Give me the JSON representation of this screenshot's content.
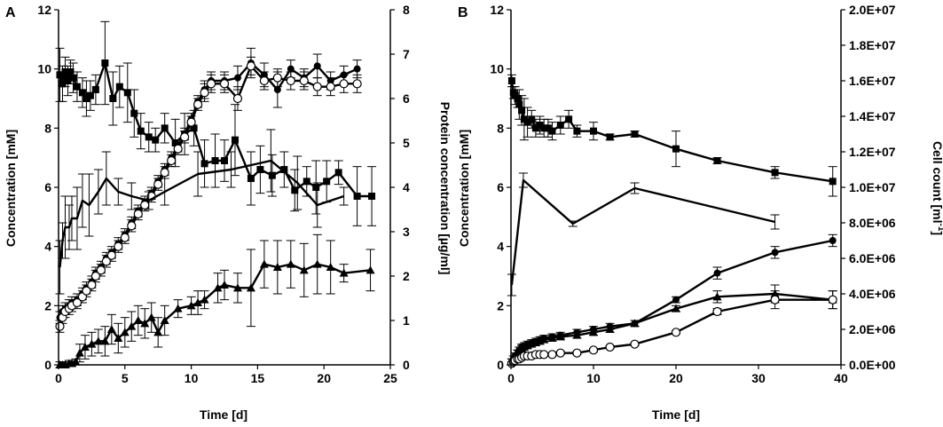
{
  "chart_data": [
    {
      "panel": "A",
      "type": "line",
      "xlabel": "Time [d]",
      "ylabel": "Concentration [mM]",
      "y2label": "Protein concentration [µg/ml]",
      "xlim": [
        0,
        25
      ],
      "ylim": [
        0,
        12
      ],
      "y2lim": [
        0,
        8
      ],
      "xticks": [
        "0",
        "5",
        "10",
        "15",
        "20",
        "25"
      ],
      "yticks": [
        "0",
        "2",
        "4",
        "6",
        "8",
        "10",
        "12"
      ],
      "y2ticks": [
        "0",
        "1",
        "2",
        "3",
        "4",
        "5",
        "6",
        "7",
        "8"
      ],
      "series": [
        {
          "name": "squares",
          "marker": "square",
          "axis": "left",
          "x": [
            0.1,
            0.3,
            0.5,
            0.7,
            0.9,
            1.1,
            1.4,
            1.8,
            2.1,
            2.4,
            2.8,
            3.5,
            4.1,
            4.6,
            5.2,
            5.7,
            6.2,
            6.8,
            7.3,
            8.0,
            8.8,
            9.5,
            10.2,
            11.0,
            11.8,
            12.5,
            13.3,
            14.5,
            15.2,
            16.1,
            17.0,
            17.8,
            18.7,
            19.4,
            20.2,
            21.1,
            22.5,
            23.6
          ],
          "y": [
            9.8,
            9.5,
            9.9,
            9.6,
            9.9,
            9.7,
            9.4,
            9.2,
            9.0,
            9.1,
            9.3,
            10.2,
            9.0,
            9.4,
            9.2,
            8.5,
            7.9,
            7.7,
            7.6,
            8.0,
            7.5,
            7.8,
            8.0,
            6.8,
            6.9,
            6.9,
            7.6,
            6.3,
            6.6,
            6.4,
            6.6,
            5.9,
            6.2,
            6.0,
            6.2,
            6.5,
            5.7,
            5.7
          ],
          "err": [
            0.9,
            0.6,
            0.5,
            0.5,
            0.4,
            0.5,
            0.5,
            0.5,
            0.6,
            0.5,
            0.5,
            1.4,
            0.9,
            0.7,
            1.0,
            0.8,
            0.6,
            0.5,
            0.4,
            0.5,
            0.8,
            0.7,
            0.6,
            0.8,
            0.9,
            0.7,
            1.2,
            0.9,
            0.8,
            0.7,
            0.6,
            0.7,
            0.5,
            0.9,
            0.7,
            0.4,
            1.0,
            1.0
          ]
        },
        {
          "name": "filled circles",
          "marker": "circle-filled",
          "axis": "left",
          "x": [
            0.1,
            0.3,
            0.5,
            0.8,
            1.0,
            1.4,
            1.8,
            2.1,
            2.5,
            2.8,
            3.2,
            3.6,
            4.0,
            4.5,
            5.0,
            5.5,
            6.0,
            6.5,
            7.0,
            7.5,
            8.0,
            8.5,
            9.0,
            9.5,
            10.0,
            10.5,
            11.0,
            11.5,
            12.5,
            13.5,
            14.5,
            15.5,
            16.5,
            17.5,
            18.5,
            19.5,
            20.5,
            21.5,
            22.5
          ],
          "y": [
            1.6,
            1.8,
            1.9,
            2.0,
            2.1,
            2.2,
            2.4,
            2.6,
            2.8,
            3.1,
            3.3,
            3.6,
            3.8,
            4.1,
            4.4,
            4.8,
            5.2,
            5.5,
            5.8,
            6.2,
            6.6,
            7.0,
            7.4,
            7.8,
            8.3,
            8.9,
            9.3,
            9.6,
            9.6,
            9.7,
            10.2,
            9.8,
            9.3,
            10.0,
            9.7,
            10.1,
            9.6,
            9.8,
            10.0
          ],
          "err": [
            0.2,
            0.2,
            0.2,
            0.2,
            0.2,
            0.2,
            0.2,
            0.2,
            0.2,
            0.2,
            0.2,
            0.2,
            0.2,
            0.2,
            0.2,
            0.2,
            0.2,
            0.2,
            0.2,
            0.2,
            0.2,
            0.2,
            0.2,
            0.2,
            0.2,
            0.2,
            0.3,
            0.3,
            0.3,
            0.4,
            0.5,
            0.4,
            0.6,
            0.3,
            0.3,
            0.4,
            0.3,
            0.3,
            0.3
          ]
        },
        {
          "name": "open circles",
          "marker": "circle-open",
          "axis": "left",
          "x": [
            0.1,
            0.3,
            0.5,
            0.8,
            1.0,
            1.4,
            1.8,
            2.1,
            2.5,
            2.8,
            3.2,
            3.6,
            4.0,
            4.5,
            5.0,
            5.5,
            6.0,
            6.5,
            7.0,
            7.5,
            8.0,
            8.5,
            9.0,
            9.5,
            10.0,
            10.5,
            11.0,
            11.5,
            12.5,
            13.5,
            14.5,
            15.5,
            16.5,
            17.5,
            18.5,
            19.5,
            20.5,
            21.5,
            22.5
          ],
          "y": [
            1.3,
            1.6,
            1.8,
            1.9,
            2.0,
            2.1,
            2.3,
            2.5,
            2.7,
            3.0,
            3.2,
            3.5,
            3.7,
            4.0,
            4.3,
            4.7,
            5.1,
            5.4,
            5.7,
            6.1,
            6.5,
            6.9,
            7.3,
            7.7,
            8.2,
            8.8,
            9.2,
            9.5,
            9.5,
            9.0,
            10.1,
            9.6,
            9.7,
            9.6,
            9.6,
            9.4,
            9.4,
            9.5,
            9.5
          ],
          "err": [
            0.2,
            0.2,
            0.2,
            0.2,
            0.2,
            0.2,
            0.2,
            0.2,
            0.2,
            0.2,
            0.2,
            0.2,
            0.2,
            0.2,
            0.2,
            0.2,
            0.2,
            0.2,
            0.2,
            0.2,
            0.2,
            0.2,
            0.2,
            0.2,
            0.2,
            0.2,
            0.3,
            0.3,
            0.3,
            0.4,
            0.3,
            0.3,
            0.3,
            0.3,
            0.3,
            0.3,
            0.3,
            0.3,
            0.3
          ]
        },
        {
          "name": "triangles",
          "marker": "triangle",
          "axis": "left",
          "x": [
            0.1,
            0.3,
            0.5,
            0.8,
            1.0,
            1.3,
            1.6,
            2.0,
            2.5,
            3.0,
            3.5,
            4.0,
            4.5,
            5.0,
            5.5,
            6.0,
            6.5,
            7.0,
            7.5,
            8.0,
            9.0,
            10.0,
            10.5,
            11.0,
            12.0,
            12.5,
            13.5,
            14.5,
            15.5,
            16.5,
            17.5,
            18.5,
            19.5,
            20.5,
            21.5,
            23.5
          ],
          "y": [
            0.0,
            0.0,
            0.0,
            0.05,
            0.05,
            0.1,
            0.4,
            0.6,
            0.7,
            0.8,
            0.8,
            1.2,
            0.9,
            1.1,
            1.3,
            1.5,
            1.4,
            1.6,
            1.1,
            1.5,
            1.9,
            2.0,
            2.1,
            2.2,
            2.6,
            2.7,
            2.6,
            2.6,
            3.4,
            3.3,
            3.4,
            3.2,
            3.4,
            3.3,
            3.1,
            3.2
          ],
          "err": [
            0.1,
            0.1,
            0.1,
            0.1,
            0.1,
            0.1,
            0.3,
            0.4,
            0.4,
            0.4,
            0.5,
            0.5,
            0.5,
            0.5,
            0.5,
            0.5,
            0.5,
            0.5,
            0.5,
            0.5,
            0.3,
            0.3,
            0.4,
            0.3,
            0.5,
            0.5,
            0.5,
            1.3,
            0.8,
            0.9,
            0.8,
            0.9,
            1.0,
            0.9,
            0.3,
            0.7
          ]
        },
        {
          "name": "protein concentration",
          "marker": "none",
          "axis": "right",
          "x": [
            0.1,
            0.3,
            0.5,
            0.8,
            1.0,
            1.4,
            1.8,
            2.3,
            3.0,
            3.6,
            4.5,
            5.5,
            6.8,
            8.0,
            10.5,
            13.0,
            16.0,
            18.0,
            19.5,
            21.5
          ],
          "y": [
            2.2,
            2.8,
            3.1,
            3.1,
            3.3,
            3.3,
            3.7,
            3.6,
            3.9,
            4.2,
            3.9,
            3.8,
            3.7,
            3.9,
            4.3,
            4.4,
            4.6,
            4.1,
            3.6,
            3.8
          ],
          "err": [
            0.6,
            0.4,
            0.7,
            0.5,
            0.5,
            0.7,
            0.6,
            0.7,
            0.5,
            0.6,
            0.3,
            0.3,
            0.2,
            0.3,
            0.5,
            0.4,
            0.7,
            0.6,
            0.5,
            0.2
          ]
        }
      ]
    },
    {
      "panel": "B",
      "type": "line",
      "xlabel": "Time [d]",
      "ylabel": "Concentration [mM]",
      "y2label": "Cell count [ml-1]",
      "xlim": [
        0,
        40
      ],
      "ylim": [
        0,
        12
      ],
      "y2lim": [
        0,
        20000000
      ],
      "xticks": [
        "0",
        "10",
        "20",
        "30",
        "40"
      ],
      "yticks": [
        "0",
        "2",
        "4",
        "6",
        "8",
        "10",
        "12"
      ],
      "y2ticks": [
        "0.0E+00",
        "2.0E+06",
        "4.0E+06",
        "6.0E+06",
        "8.0E+06",
        "1.0E+07",
        "1.2E+07",
        "1.4E+07",
        "1.6E+07",
        "1.8E+07",
        "2.0E+07"
      ],
      "series": [
        {
          "name": "squares",
          "marker": "square",
          "axis": "left",
          "x": [
            0.1,
            0.3,
            0.5,
            0.8,
            1.0,
            1.3,
            1.6,
            2.0,
            2.5,
            3.0,
            3.5,
            4.0,
            4.5,
            5.0,
            6.0,
            7.0,
            8.0,
            10.0,
            12.0,
            15.0,
            20.0,
            25.0,
            32.0,
            39.0
          ],
          "y": [
            9.6,
            9.2,
            9.1,
            9.0,
            8.8,
            8.6,
            8.3,
            8.2,
            8.3,
            8.0,
            8.1,
            8.0,
            8.0,
            7.9,
            8.1,
            8.3,
            7.9,
            7.9,
            7.7,
            7.8,
            7.3,
            6.9,
            6.5,
            6.2
          ],
          "err": [
            0.2,
            0.2,
            0.3,
            0.3,
            0.5,
            0.5,
            0.7,
            0.5,
            0.3,
            0.3,
            0.3,
            0.3,
            0.3,
            0.3,
            0.3,
            0.3,
            0.2,
            0.3,
            0.1,
            0.1,
            0.6,
            0.1,
            0.2,
            0.5
          ]
        },
        {
          "name": "filled circles",
          "marker": "circle-filled",
          "axis": "left",
          "x": [
            0.1,
            0.3,
            0.5,
            0.8,
            1.0,
            1.3,
            1.6,
            2.0,
            2.5,
            3.0,
            3.5,
            4.0,
            5.0,
            6.0,
            8.0,
            10.0,
            12.0,
            15.0,
            20.0,
            25.0,
            32.0,
            39.0
          ],
          "y": [
            0.1,
            0.2,
            0.3,
            0.4,
            0.5,
            0.6,
            0.65,
            0.7,
            0.75,
            0.8,
            0.85,
            0.9,
            0.95,
            1.0,
            1.1,
            1.2,
            1.3,
            1.4,
            2.2,
            3.1,
            3.8,
            4.2
          ],
          "err": [
            0.1,
            0.1,
            0.1,
            0.1,
            0.1,
            0.1,
            0.1,
            0.1,
            0.1,
            0.1,
            0.1,
            0.1,
            0.1,
            0.1,
            0.1,
            0.1,
            0.1,
            0.1,
            0.1,
            0.2,
            0.2,
            0.2
          ]
        },
        {
          "name": "triangles",
          "marker": "triangle",
          "axis": "left",
          "x": [
            0.1,
            0.3,
            0.5,
            0.8,
            1.0,
            1.3,
            1.6,
            2.0,
            2.5,
            3.0,
            3.5,
            4.0,
            5.0,
            6.0,
            8.0,
            10.0,
            12.0,
            15.0,
            20.0,
            25.0,
            32.0,
            39.0
          ],
          "y": [
            0.1,
            0.2,
            0.3,
            0.4,
            0.5,
            0.55,
            0.6,
            0.65,
            0.7,
            0.75,
            0.8,
            0.85,
            0.9,
            0.95,
            1.0,
            1.1,
            1.2,
            1.4,
            1.9,
            2.3,
            2.4,
            2.2
          ],
          "err": [
            0.1,
            0.1,
            0.1,
            0.1,
            0.1,
            0.1,
            0.1,
            0.1,
            0.1,
            0.1,
            0.1,
            0.1,
            0.1,
            0.1,
            0.1,
            0.1,
            0.1,
            0.1,
            0.1,
            0.2,
            0.3,
            0.3
          ]
        },
        {
          "name": "open circles",
          "marker": "circle-open",
          "axis": "left",
          "x": [
            0.1,
            0.3,
            0.5,
            0.8,
            1.0,
            1.3,
            1.6,
            2.0,
            2.5,
            3.0,
            3.5,
            4.0,
            5.0,
            6.0,
            8.0,
            10.0,
            12.0,
            15.0,
            20.0,
            25.0,
            32.0,
            39.0
          ],
          "y": [
            0.05,
            0.1,
            0.15,
            0.2,
            0.2,
            0.25,
            0.3,
            0.3,
            0.3,
            0.35,
            0.35,
            0.35,
            0.35,
            0.4,
            0.4,
            0.5,
            0.6,
            0.7,
            1.1,
            1.8,
            2.2,
            2.2
          ],
          "err": [
            0.05,
            0.05,
            0.05,
            0.05,
            0.05,
            0.05,
            0.05,
            0.05,
            0.05,
            0.05,
            0.05,
            0.05,
            0.05,
            0.05,
            0.05,
            0.05,
            0.05,
            0.05,
            0.05,
            0.1,
            0.3,
            0.3
          ]
        },
        {
          "name": "cell count",
          "marker": "none",
          "axis": "right",
          "x": [
            0.1,
            1.5,
            7.5,
            15.0,
            32.0
          ],
          "y": [
            4500000,
            10400000,
            7950000,
            9950000,
            8050000
          ],
          "err": [
            600000,
            400000,
            150000,
            300000,
            400000
          ]
        }
      ]
    }
  ],
  "figure": {
    "panel_a_letter": "A",
    "panel_b_letter": "B",
    "a_xlabel": "Time [d]",
    "a_ylabel": "Concentration [mM]",
    "a_y2label": "Protein concentration [µg/ml]",
    "b_xlabel": "Time [d]",
    "b_ylabel": "Concentration [mM]",
    "b_y2label_main": "Cell count [ml",
    "b_y2label_sup": "-1",
    "b_y2label_end": "]"
  }
}
